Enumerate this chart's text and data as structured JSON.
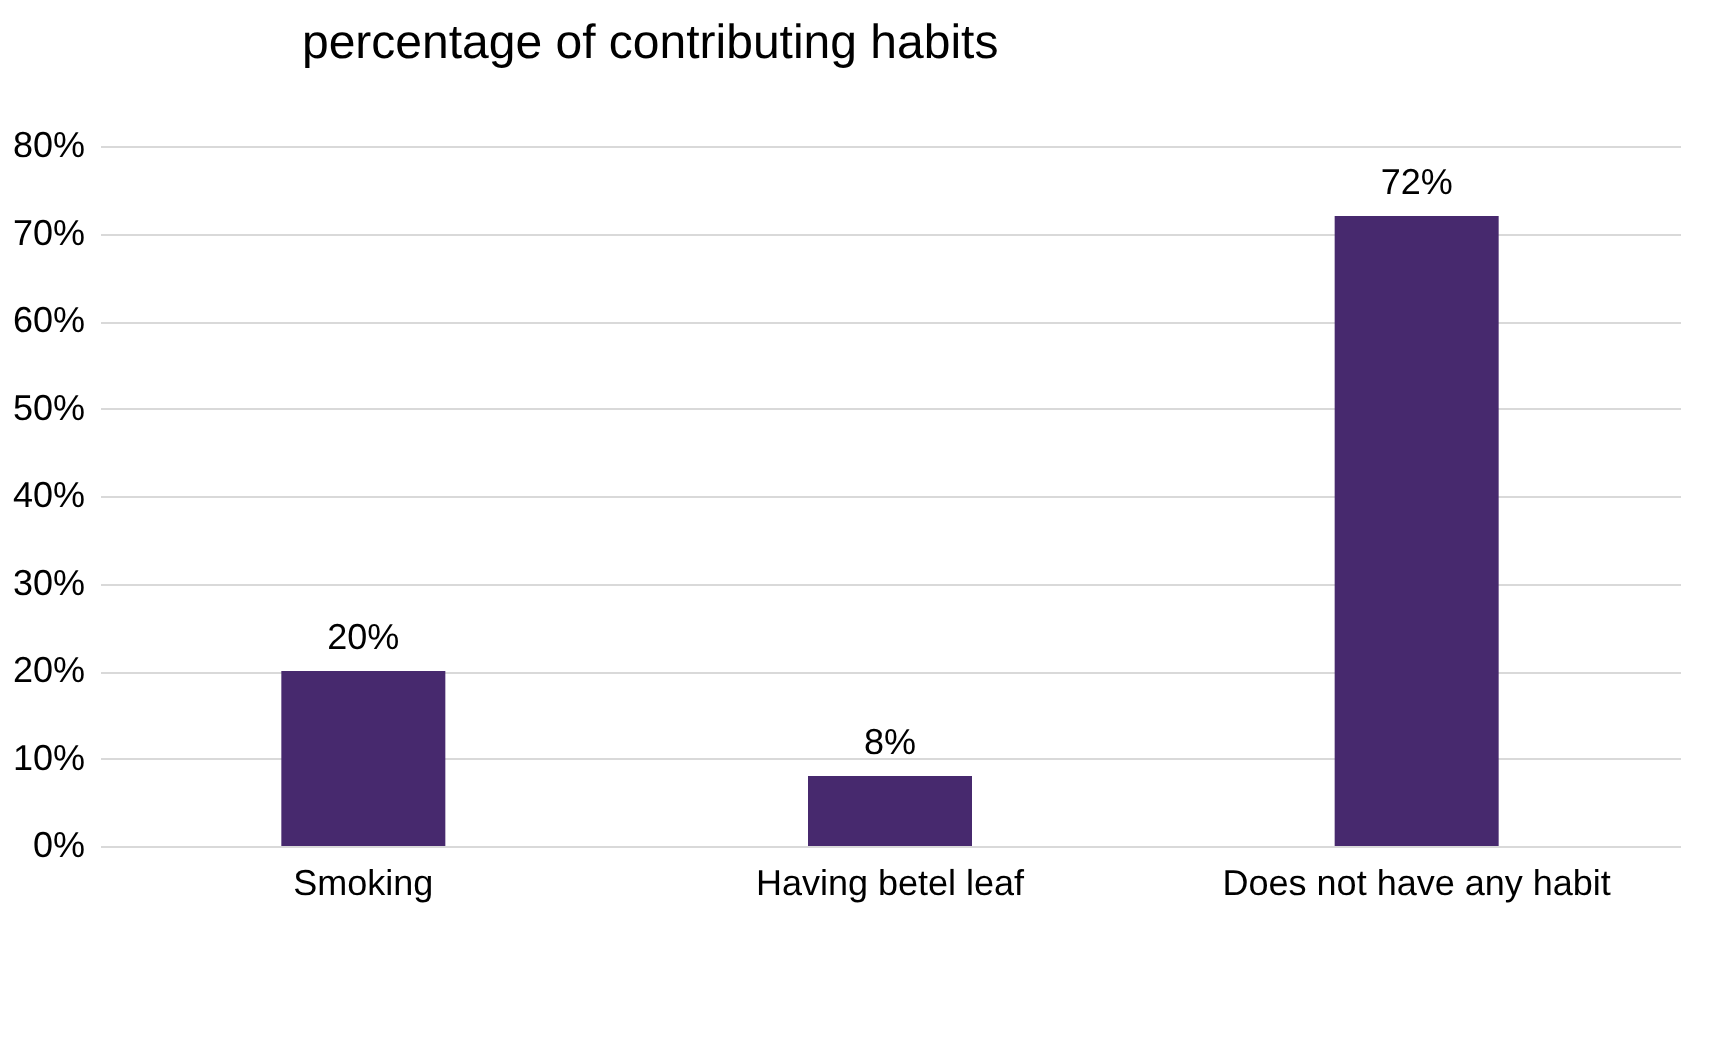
{
  "chart_data": {
    "type": "bar",
    "title": "percentage of contributing habits",
    "categories": [
      "Smoking",
      "Having betel leaf",
      "Does not have any habit"
    ],
    "values": [
      20,
      8,
      72
    ],
    "color": "#47296e",
    "value_labels": [
      "20%",
      "8%",
      "72%"
    ],
    "ylim": [
      0,
      80
    ],
    "yticks": [
      {
        "value": 0,
        "label": "0%"
      },
      {
        "value": 10,
        "label": "10%"
      },
      {
        "value": 20,
        "label": "20%"
      },
      {
        "value": 30,
        "label": "30%"
      },
      {
        "value": 40,
        "label": "40%"
      },
      {
        "value": 50,
        "label": "50%"
      },
      {
        "value": 60,
        "label": "60%"
      },
      {
        "value": 70,
        "label": "70%"
      },
      {
        "value": 80,
        "label": "80%"
      }
    ],
    "grid": "y"
  }
}
